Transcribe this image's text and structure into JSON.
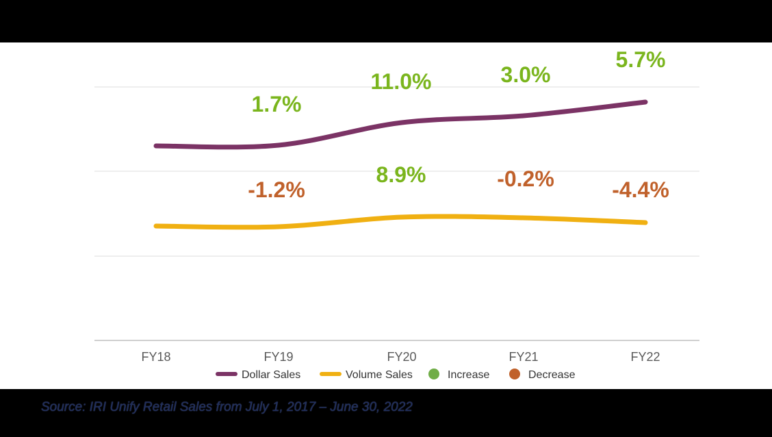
{
  "chart_data": {
    "type": "line",
    "categories": [
      "FY18",
      "FY19",
      "FY20",
      "FY21",
      "FY22"
    ],
    "series": [
      {
        "name": "Dollar Sales",
        "color": "#7b3365",
        "labels": [
          "",
          "1.7%",
          "11.0%",
          "3.0%",
          "5.7%"
        ]
      },
      {
        "name": "Volume Sales",
        "color": "#f0b012",
        "labels": [
          "",
          "-1.2%",
          "8.9%",
          "-0.2%",
          "-4.4%"
        ]
      }
    ],
    "legend": {
      "position": "bottom",
      "items": [
        {
          "label": "Dollar Sales",
          "marker": "line",
          "color": "#7b3365"
        },
        {
          "label": "Volume Sales",
          "marker": "line",
          "color": "#f0b012"
        },
        {
          "label": "Increase",
          "marker": "dot",
          "color": "#70ad47"
        },
        {
          "label": "Decrease",
          "marker": "dot",
          "color": "#c0612b"
        }
      ]
    },
    "label_colors": {
      "increase": "#7ab51d",
      "decrease": "#c0612b"
    },
    "grid": true,
    "y_axis_labels": false
  },
  "source": "Source: IRI Unify Retail Sales from July 1, 2017 – June 30, 2022"
}
